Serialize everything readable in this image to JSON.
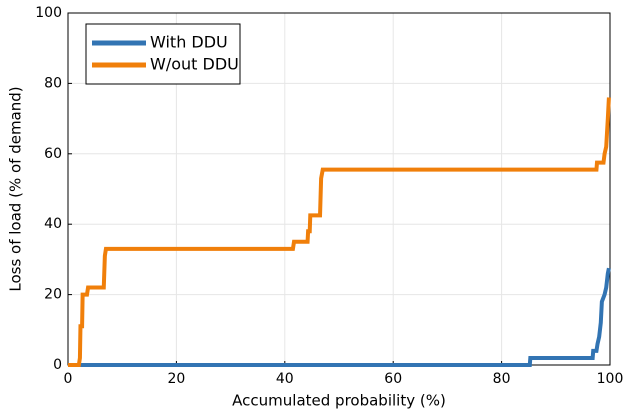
{
  "chart_data": {
    "type": "line",
    "x_label": "Accumulated probability (%)",
    "y_label": "Loss of load (% of demand)",
    "xlim": [
      0,
      100
    ],
    "xticks": [
      0,
      20,
      40,
      60,
      80,
      100
    ],
    "ylim": [
      0,
      100
    ],
    "yticks": [
      0,
      20,
      40,
      60,
      80,
      100
    ],
    "grid": true,
    "legend": "upper left",
    "series": [
      {
        "name": "With DDU",
        "color": "#3274b3",
        "x": [
          0,
          85.2,
          85.3,
          96.8,
          96.9,
          97.5,
          97.7,
          98,
          98.3,
          98.5,
          99,
          99.3,
          99.6,
          99.8
        ],
        "values": [
          0,
          0,
          2,
          2,
          4,
          4,
          6,
          8,
          12,
          18,
          20,
          22,
          26,
          27.5
        ]
      },
      {
        "name": "W/out DDU",
        "color": "#f07f0a",
        "x": [
          0,
          2,
          2.2,
          2.3,
          2.6,
          2.7,
          3.5,
          3.7,
          6.6,
          6.8,
          7,
          41.5,
          41.7,
          44.2,
          44.3,
          44.6,
          44.7,
          46.5,
          46.7,
          47,
          97.5,
          97.6,
          98.8,
          99,
          99.3,
          99.6,
          99.8
        ],
        "values": [
          0,
          0,
          2,
          11,
          11,
          20,
          20,
          22,
          22,
          31,
          33,
          33,
          35,
          35,
          38,
          38,
          42.5,
          42.5,
          53,
          55.5,
          55.5,
          57.5,
          57.5,
          60,
          62,
          70,
          76
        ]
      }
    ]
  }
}
